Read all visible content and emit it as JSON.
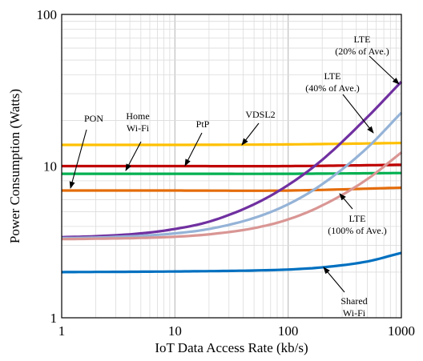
{
  "chart_data": {
    "type": "line",
    "xscale": "log",
    "yscale": "log",
    "xlim": [
      1,
      1000
    ],
    "ylim": [
      1,
      100
    ],
    "xlabel": "IoT Data Access Rate (kb/s)",
    "ylabel": "Power Consumption (Watts)",
    "x_ticks": [
      "1",
      "10",
      "100",
      "1000"
    ],
    "y_ticks": [
      "1",
      "10",
      "100"
    ],
    "grid": "major and minor, log scale",
    "series": [
      {
        "name": "VDSL2",
        "color": "#FFC000",
        "x": [
          1,
          10,
          100,
          1000
        ],
        "y": [
          13.8,
          13.8,
          13.9,
          14.2
        ]
      },
      {
        "name": "PtP",
        "color": "#C00000",
        "x": [
          1,
          10,
          100,
          1000
        ],
        "y": [
          10.0,
          10.0,
          10.0,
          10.2
        ]
      },
      {
        "name": "Home Wi-Fi",
        "color": "#00B050",
        "x": [
          1,
          10,
          100,
          1000
        ],
        "y": [
          8.9,
          8.9,
          8.9,
          9.0
        ]
      },
      {
        "name": "PON",
        "color": "#E46C0A",
        "x": [
          1,
          10,
          100,
          1000
        ],
        "y": [
          6.9,
          6.9,
          6.9,
          7.2
        ]
      },
      {
        "name": "LTE (20% of Ave.)",
        "color": "#7030A0",
        "x": [
          1,
          2,
          5,
          10,
          20,
          50,
          100,
          200,
          500,
          1000
        ],
        "y": [
          3.4,
          3.45,
          3.6,
          3.85,
          4.3,
          5.6,
          7.5,
          11.0,
          21.0,
          36.0
        ]
      },
      {
        "name": "LTE (40% of Ave.)",
        "color": "#95B3D7",
        "x": [
          1,
          2,
          5,
          10,
          20,
          50,
          100,
          200,
          500,
          1000
        ],
        "y": [
          3.35,
          3.38,
          3.47,
          3.6,
          3.85,
          4.55,
          5.6,
          7.6,
          13.2,
          22.5
        ]
      },
      {
        "name": "LTE (100% of Ave.)",
        "color": "#D99694",
        "x": [
          1,
          2,
          5,
          10,
          20,
          50,
          100,
          200,
          500,
          1000
        ],
        "y": [
          3.3,
          3.32,
          3.36,
          3.42,
          3.55,
          3.9,
          4.45,
          5.5,
          8.2,
          12.3
        ]
      },
      {
        "name": "Shared Wi-Fi",
        "color": "#0070C0",
        "x": [
          1,
          10,
          50,
          100,
          200,
          500,
          1000
        ],
        "y": [
          2.0,
          2.02,
          2.05,
          2.08,
          2.15,
          2.35,
          2.68
        ]
      }
    ],
    "annotations": [
      {
        "key": "pon",
        "lines": [
          "PON"
        ]
      },
      {
        "key": "home_wifi",
        "lines": [
          "Home",
          "Wi-Fi"
        ]
      },
      {
        "key": "ptp",
        "lines": [
          "PtP"
        ]
      },
      {
        "key": "vdsl2",
        "lines": [
          "VDSL2"
        ]
      },
      {
        "key": "lte20",
        "lines": [
          "LTE",
          "(20% of Ave.)"
        ]
      },
      {
        "key": "lte40",
        "lines": [
          "LTE",
          "(40% of Ave.)"
        ]
      },
      {
        "key": "lte100",
        "lines": [
          "LTE",
          "(100% of Ave.)"
        ]
      },
      {
        "key": "shared_wifi",
        "lines": [
          "Shared",
          "Wi-Fi"
        ]
      }
    ]
  }
}
